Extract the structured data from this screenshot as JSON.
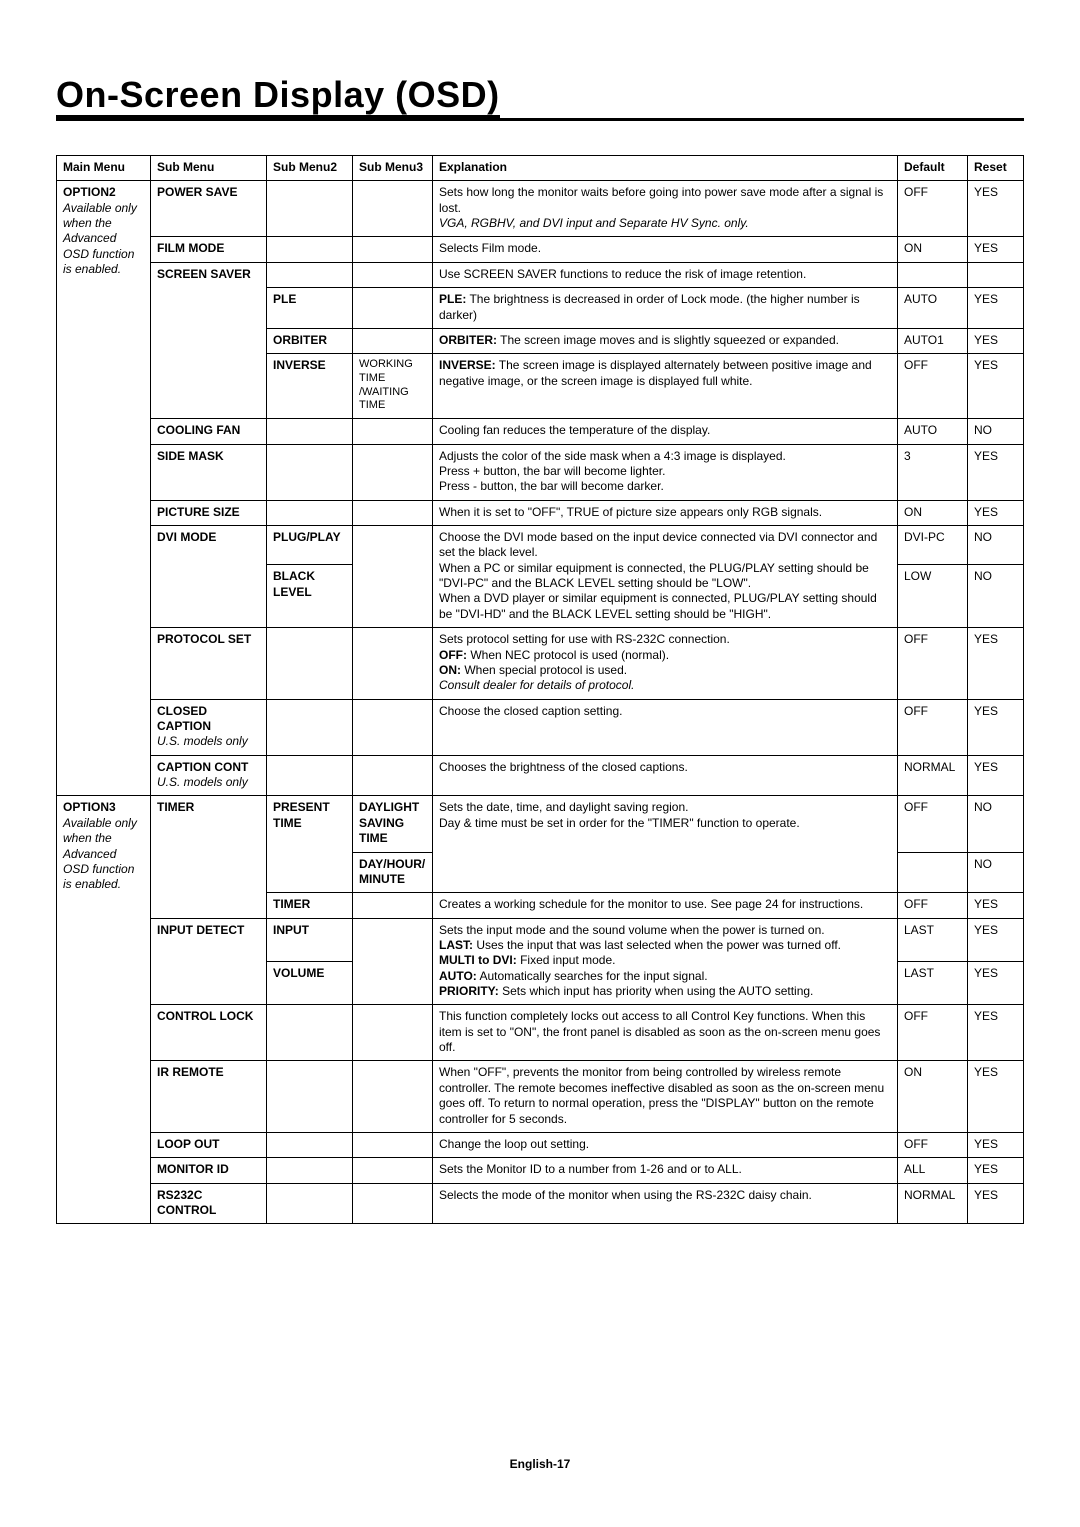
{
  "page_title": "On-Screen Display (OSD)",
  "footer": "English-17",
  "headers": {
    "main": "Main Menu",
    "sub": "Sub Menu",
    "sub2": "Sub Menu2",
    "sub3": "Sub Menu3",
    "exp": "Explanation",
    "def": "Default",
    "rst": "Reset"
  },
  "main_menu": {
    "option2_line1": "OPTION2",
    "option2_note": "Available only when the Advanced OSD function is enabled.",
    "option3_line1": "OPTION3",
    "option3_note": "Available only when the Advanced OSD function is enabled."
  },
  "rows": {
    "power_save": {
      "sub": "POWER SAVE",
      "exp_1": "Sets how long the monitor waits before going into power save mode after a signal is lost.",
      "exp_2": "VGA, RGBHV, and DVI input and Separate HV Sync. only.",
      "def": "OFF",
      "rst": "YES"
    },
    "film_mode": {
      "sub": "FILM MODE",
      "exp": "Selects Film mode.",
      "def": "ON",
      "rst": "YES"
    },
    "screen_saver": {
      "sub": "SCREEN SAVER",
      "exp": "Use SCREEN SAVER functions to reduce the risk of image retention."
    },
    "ple": {
      "sub2": "PLE",
      "exp_b": "PLE:",
      "exp": " The brightness is decreased in order of Lock mode. (the higher number is darker)",
      "def": "AUTO",
      "rst": "YES"
    },
    "orbiter": {
      "sub2": "ORBITER",
      "exp_b": "ORBITER:",
      "exp": " The screen image moves and is slightly squeezed or expanded.",
      "def": "AUTO1",
      "rst": "YES"
    },
    "inverse": {
      "sub2": "INVERSE",
      "sub3": "WORKING TIME /WAITING TIME",
      "exp_b": "INVERSE:",
      "exp": " The screen image is displayed alternately between positive image and negative image, or the screen image is displayed full white.",
      "def": "OFF",
      "rst": "YES"
    },
    "cooling_fan": {
      "sub": "COOLING FAN",
      "exp": "Cooling fan reduces the temperature of the display.",
      "def": "AUTO",
      "rst": "NO"
    },
    "side_mask": {
      "sub": "SIDE MASK",
      "exp_1": "Adjusts the color of the side mask when a 4:3 image is displayed.",
      "exp_2": "Press + button, the bar will become lighter.",
      "exp_3": "Press - button, the bar will become darker.",
      "def": "3",
      "rst": "YES"
    },
    "picture_size": {
      "sub": "PICTURE SIZE",
      "exp": "When it is set to \"OFF\", TRUE of picture size appears only RGB signals.",
      "def": "ON",
      "rst": "YES"
    },
    "dvi_mode": {
      "sub": "DVI MODE",
      "plug_play": "PLUG/PLAY",
      "black_level": "BLACK LEVEL",
      "exp_1": "Choose the DVI mode based on the input device connected via DVI connector and set the black level.",
      "exp_2": "When a PC or similar equipment is connected, the PLUG/PLAY setting should be \"DVI-PC\" and the BLACK LEVEL setting should be \"LOW\".",
      "exp_3": "When a DVD player or similar equipment is connected, PLUG/PLAY setting should be \"DVI-HD\" and the BLACK LEVEL setting should be \"HIGH\".",
      "def_pp": "DVI-PC",
      "rst_pp": "NO",
      "def_bl": "LOW",
      "rst_bl": "NO"
    },
    "protocol_set": {
      "sub": "PROTOCOL SET",
      "exp_1": "Sets protocol setting for use with RS-232C connection.",
      "exp_off_b": "OFF:",
      "exp_off": " When NEC protocol is used (normal).",
      "exp_on_b": "ON:",
      "exp_on": " When special protocol is used.",
      "exp_4": "Consult dealer for details of protocol.",
      "def": "OFF",
      "rst": "YES"
    },
    "closed_caption": {
      "sub": "CLOSED CAPTION",
      "note": "U.S. models only",
      "exp": "Choose the closed caption setting.",
      "def": "OFF",
      "rst": "YES"
    },
    "caption_cont": {
      "sub": "CAPTION CONT",
      "note": "U.S. models only",
      "exp": "Chooses the brightness of the closed captions.",
      "def": "NORMAL",
      "rst": "YES"
    },
    "timer": {
      "sub": "TIMER",
      "present_time": "PRESENT TIME",
      "dst": "DAYLIGHT SAVING TIME",
      "dhm": "DAY/HOUR/ MINUTE",
      "exp_1": "Sets the date, time, and daylight saving region.",
      "exp_2": "Day & time must be set in order for the \"TIMER\" function to operate.",
      "def_dst": "OFF",
      "rst_dst": "NO",
      "rst_dhm": "NO",
      "timer2": "TIMER",
      "exp_timer": "Creates a working schedule for the monitor to use. See page 24 for instructions.",
      "def_timer": "OFF",
      "rst_timer": "YES"
    },
    "input_detect": {
      "sub": "INPUT DETECT",
      "input": "INPUT",
      "volume": "VOLUME",
      "exp_1": "Sets the input mode and the sound volume when the power is turned on.",
      "exp_last_b": "LAST:",
      "exp_last": " Uses the input that was last selected when the power was turned off.",
      "exp_multi_b": "MULTI to DVI:",
      "exp_multi": " Fixed input mode.",
      "exp_auto_b": "AUTO:",
      "exp_auto": " Automatically searches for the input signal.",
      "exp_prio_b": "PRIORITY:",
      "exp_prio": " Sets which input has priority when using the AUTO setting.",
      "def_in": "LAST",
      "rst_in": "YES",
      "def_vol": "LAST",
      "rst_vol": "YES"
    },
    "control_lock": {
      "sub": "CONTROL LOCK",
      "exp": "This function completely locks out access to all Control Key functions. When this item is set to \"ON\", the front panel is disabled as soon as the on-screen menu goes off.",
      "def": "OFF",
      "rst": "YES"
    },
    "ir_remote": {
      "sub": "IR REMOTE",
      "exp": "When \"OFF\", prevents the monitor from being controlled by wireless remote controller. The remote becomes ineffective disabled as soon as the on-screen menu goes off. To return to normal operation, press the \"DISPLAY\" button on the remote controller for 5 seconds.",
      "def": "ON",
      "rst": "YES"
    },
    "loop_out": {
      "sub": "LOOP OUT",
      "exp": "Change the loop out setting.",
      "def": "OFF",
      "rst": "YES"
    },
    "monitor_id": {
      "sub": "MONITOR ID",
      "exp": "Sets the Monitor ID to a number from 1-26 and or to ALL.",
      "def": "ALL",
      "rst": "YES"
    },
    "rs232c": {
      "sub": "RS232C CONTROL",
      "exp": "Selects the mode of the monitor when using the RS-232C daisy chain.",
      "def": "NORMAL",
      "rst": "YES"
    }
  }
}
